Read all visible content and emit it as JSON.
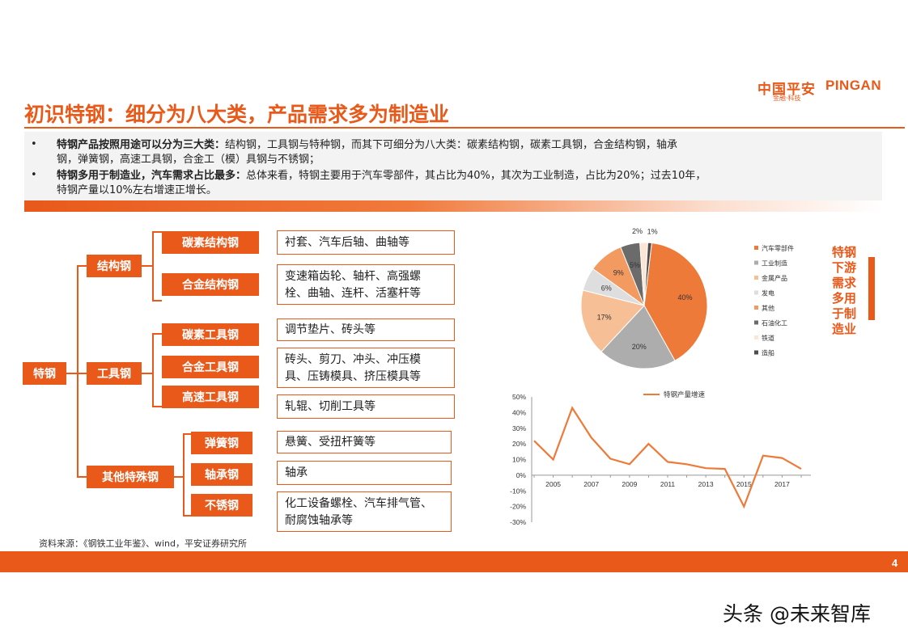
{
  "header": {
    "logo_cn": "中国平安",
    "logo_en": "PINGAN",
    "logo_sub": "金融·科技",
    "title": "初识特钢：细分为八大类，产品需求多为制造业"
  },
  "summary": {
    "b1_bold": "特钢产品按照用途可以分为三大类：",
    "b1_text": "结构钢，工具钢与特种钢，而其下可细分为八大类：碳素结构钢，碳素工具钢，合金结构钢，轴承",
    "b1_line2": "钢，弹簧钢，高速工具钢，合金工（模）具钢与不锈钢；",
    "b2_bold": "特钢多用于制造业，汽车需求占比最多：",
    "b2_text": "总体来看，特钢主要用于汽车零部件，其占比为40%，其次为工业制造，占比为20%；过去10年，",
    "b2_line2": "特钢产量以10%左右增速正增长。"
  },
  "tree": {
    "root": "特钢",
    "categories": [
      "结构钢",
      "工具钢",
      "其他特殊钢"
    ],
    "types": [
      "碳素结构钢",
      "合金结构钢",
      "碳素工具钢",
      "合金工具钢",
      "高速工具钢",
      "弹簧钢",
      "轴承钢",
      "不锈钢"
    ],
    "uses": [
      [
        "衬套、汽车后轴、曲轴等"
      ],
      [
        "变速箱齿轮、轴杆、高强螺",
        "栓、曲轴、连杆、活塞杆等"
      ],
      [
        "调节垫片、砖头等"
      ],
      [
        "砖头、剪刀、冲头、冲压模",
        "具、压铸模具、挤压模具等"
      ],
      [
        "轧辊、切削工具等"
      ],
      [
        "悬簧、受扭杆簧等"
      ],
      [
        "轴承"
      ],
      [
        "化工设备螺栓、汽车排气管、",
        "耐腐蚀轴承等"
      ]
    ]
  },
  "side_text": "特钢下游需求多用于制造业",
  "source": "资料来源：《钢铁工业年鉴》、wind，平安证券研究所",
  "page_number": "4",
  "watermark": "头条 @未来智库",
  "chart_data": [
    {
      "type": "pie",
      "categories": [
        "汽车零部件",
        "工业制造",
        "金属产品",
        "发电",
        "其他",
        "石油化工",
        "铁道",
        "造船"
      ],
      "values": [
        40,
        20,
        17,
        6,
        9,
        5,
        2,
        1
      ],
      "value_labels": [
        "40%",
        "20%",
        "17%",
        "6%",
        "9%",
        "5%",
        "2%",
        "1%"
      ],
      "colors": [
        "#ee7a3a",
        "#adadad",
        "#f7bf95",
        "#dedede",
        "#f29a60",
        "#6b6b6b",
        "#fce5d3",
        "#4d4d4d"
      ],
      "legend_position": "right"
    },
    {
      "type": "line",
      "series": [
        {
          "name": "特钢产量增速",
          "color": "#ee7a3a",
          "x": [
            2004,
            2005,
            2006,
            2007,
            2008,
            2009,
            2010,
            2011,
            2012,
            2013,
            2014,
            2015,
            2016,
            2017,
            2018
          ],
          "values": [
            22,
            10,
            43,
            24,
            10.5,
            7,
            20,
            8.5,
            7,
            4.5,
            4,
            -20,
            12.5,
            11,
            4
          ]
        }
      ],
      "x_ticks": [
        "2005",
        "2007",
        "2009",
        "2011",
        "2013",
        "2015",
        "2017"
      ],
      "y_ticks": [
        "50%",
        "40%",
        "30%",
        "20%",
        "10%",
        "0%",
        "-10%",
        "-20%",
        "-30%"
      ],
      "ylim": [
        -30,
        50
      ],
      "legend_position": "top"
    }
  ]
}
